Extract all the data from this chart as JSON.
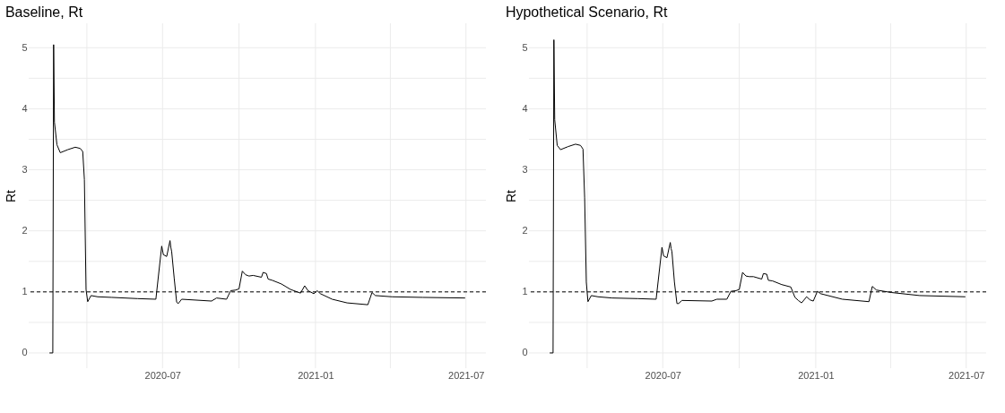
{
  "chart_data": [
    {
      "type": "line",
      "title": "Baseline, Rt",
      "ylabel": "Rt",
      "grid": true,
      "line_style": "solid",
      "xlim": [
        "2020-01-22",
        "2021-07-25"
      ],
      "xticks": [
        {
          "value": "2020-04",
          "label": null
        },
        {
          "value": "2020-07",
          "label": "2020-07"
        },
        {
          "value": "2020-10",
          "label": null
        },
        {
          "value": "2021-01",
          "label": "2021-01"
        },
        {
          "value": "2021-04",
          "label": null
        },
        {
          "value": "2021-07",
          "label": "2021-07"
        }
      ],
      "ylim": [
        -0.25,
        5.4
      ],
      "yticks": [
        0,
        {
          "value": 0.5,
          "label": null
        },
        1,
        {
          "value": 1.5,
          "label": null
        },
        2,
        {
          "value": 2.5,
          "label": null
        },
        3,
        {
          "value": 3.5,
          "label": null
        },
        4,
        {
          "value": 4.5,
          "label": null
        },
        5
      ],
      "ref_lines": [
        {
          "axis": "y",
          "value": 1,
          "color": "#000000",
          "line_style": "dashed"
        }
      ],
      "series": [
        {
          "color": "#000000",
          "x": [
            "2020-02-16",
            "2020-02-20",
            "2020-02-21",
            "2020-02-22",
            "2020-02-25",
            "2020-02-29",
            "2020-03-09",
            "2020-03-18",
            "2020-03-24",
            "2020-03-27",
            "2020-03-29",
            "2020-03-31",
            "2020-04-02",
            "2020-04-06",
            "2020-04-14",
            "2020-05-01",
            "2020-06-01",
            "2020-06-23",
            "2020-06-30",
            "2020-07-02",
            "2020-07-06",
            "2020-07-10",
            "2020-07-11",
            "2020-07-12",
            "2020-07-15",
            "2020-07-18",
            "2020-07-20",
            "2020-07-24",
            "2020-08-29",
            "2020-09-04",
            "2020-09-16",
            "2020-09-21",
            "2020-09-27",
            "2020-10-01",
            "2020-10-05",
            "2020-10-09",
            "2020-10-13",
            "2020-10-18",
            "2020-10-28",
            "2020-10-30",
            "2020-11-03",
            "2020-11-05",
            "2020-11-10",
            "2020-11-21",
            "2020-12-02",
            "2020-12-14",
            "2020-12-19",
            "2020-12-23",
            "2020-12-30",
            "2021-01-03",
            "2021-01-07",
            "2021-01-21",
            "2021-02-08",
            "2021-03-05",
            "2021-03-10",
            "2021-03-14",
            "2021-04-03",
            "2021-05-10",
            "2021-06-30"
          ],
          "values": [
            0,
            0,
            5.05,
            3.78,
            3.41,
            3.28,
            3.33,
            3.37,
            3.35,
            3.3,
            2.84,
            1.04,
            0.84,
            0.94,
            0.92,
            0.91,
            0.89,
            0.88,
            1.75,
            1.61,
            1.58,
            1.84,
            1.73,
            1.66,
            1.23,
            0.83,
            0.81,
            0.88,
            0.85,
            0.9,
            0.88,
            1.02,
            1.03,
            1.05,
            1.34,
            1.28,
            1.26,
            1.27,
            1.24,
            1.32,
            1.3,
            1.21,
            1.19,
            1.13,
            1.04,
            0.98,
            1.1,
            1.02,
            0.97,
            1.02,
            0.97,
            0.88,
            0.82,
            0.79,
            0.99,
            0.94,
            0.92,
            0.91,
            0.9
          ]
        }
      ]
    },
    {
      "type": "line",
      "title": "Hypothetical Scenario, Rt",
      "ylabel": "Rt",
      "grid": true,
      "line_style": "solid",
      "xlim": [
        "2020-01-22",
        "2021-07-25"
      ],
      "xticks": [
        {
          "value": "2020-04",
          "label": null
        },
        {
          "value": "2020-07",
          "label": "2020-07"
        },
        {
          "value": "2020-10",
          "label": null
        },
        {
          "value": "2021-01",
          "label": "2021-01"
        },
        {
          "value": "2021-04",
          "label": null
        },
        {
          "value": "2021-07",
          "label": "2021-07"
        }
      ],
      "ylim": [
        -0.25,
        5.4
      ],
      "yticks": [
        0,
        {
          "value": 0.5,
          "label": null
        },
        1,
        {
          "value": 1.5,
          "label": null
        },
        2,
        {
          "value": 2.5,
          "label": null
        },
        3,
        {
          "value": 3.5,
          "label": null
        },
        4,
        {
          "value": 4.5,
          "label": null
        },
        5
      ],
      "ref_lines": [
        {
          "axis": "y",
          "value": 1,
          "color": "#000000",
          "line_style": "dashed"
        }
      ],
      "series": [
        {
          "color": "#000000",
          "x": [
            "2020-02-16",
            "2020-02-20",
            "2020-02-21",
            "2020-02-22",
            "2020-02-25",
            "2020-02-29",
            "2020-03-09",
            "2020-03-18",
            "2020-03-24",
            "2020-03-27",
            "2020-03-29",
            "2020-03-31",
            "2020-04-02",
            "2020-04-06",
            "2020-04-14",
            "2020-05-01",
            "2020-06-01",
            "2020-06-23",
            "2020-06-30",
            "2020-07-02",
            "2020-07-06",
            "2020-07-10",
            "2020-07-11",
            "2020-07-12",
            "2020-07-15",
            "2020-07-18",
            "2020-07-20",
            "2020-07-24",
            "2020-08-29",
            "2020-09-04",
            "2020-09-16",
            "2020-09-21",
            "2020-09-27",
            "2020-10-01",
            "2020-10-05",
            "2020-10-09",
            "2020-10-13",
            "2020-10-18",
            "2020-10-28",
            "2020-10-30",
            "2020-11-03",
            "2020-11-05",
            "2020-11-10",
            "2020-11-21",
            "2020-12-02",
            "2020-12-07",
            "2020-12-11",
            "2020-12-15",
            "2020-12-21",
            "2020-12-25",
            "2020-12-29",
            "2021-01-03",
            "2021-01-07",
            "2021-02-02",
            "2021-03-06",
            "2021-03-10",
            "2021-03-15",
            "2021-04-02",
            "2021-05-06",
            "2021-06-30"
          ],
          "values": [
            0,
            0,
            5.13,
            3.82,
            3.4,
            3.33,
            3.38,
            3.42,
            3.4,
            3.34,
            2.54,
            1.16,
            0.84,
            0.94,
            0.92,
            0.9,
            0.89,
            0.88,
            1.73,
            1.59,
            1.56,
            1.81,
            1.71,
            1.66,
            1.16,
            0.81,
            0.81,
            0.86,
            0.85,
            0.88,
            0.88,
            1.01,
            1.02,
            1.04,
            1.32,
            1.26,
            1.25,
            1.25,
            1.21,
            1.3,
            1.29,
            1.19,
            1.18,
            1.12,
            1.08,
            0.91,
            0.86,
            0.82,
            0.92,
            0.87,
            0.85,
            1.01,
            0.97,
            0.88,
            0.84,
            1.09,
            1.03,
            0.99,
            0.94,
            0.92
          ]
        }
      ]
    }
  ]
}
